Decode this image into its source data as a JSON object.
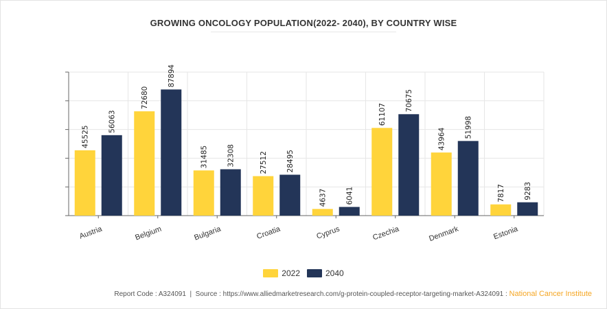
{
  "chart_data": {
    "type": "bar",
    "title": "GROWING ONCOLOGY POPULATION(2022- 2040), BY COUNTRY WISE",
    "categories": [
      "Austria",
      "Belgium",
      "Bulgaria",
      "Croatia",
      "Cyprus",
      "Czechia",
      "Denmark",
      "Estonia"
    ],
    "series": [
      {
        "name": "2022",
        "color": "#ffd43b",
        "values": [
          45525,
          72680,
          31485,
          27512,
          4637,
          61107,
          43964,
          7817
        ]
      },
      {
        "name": "2040",
        "color": "#233558",
        "values": [
          56063,
          87894,
          32308,
          28495,
          6041,
          70675,
          51998,
          9283
        ]
      }
    ],
    "xlabel": "",
    "ylabel": "",
    "ylim": [
      0,
      100000
    ],
    "grid": true,
    "legend": "bottom-center"
  },
  "footer": {
    "report_code": "Report Code : A324091",
    "separator": "|",
    "source": "Source : https://www.alliedmarketresearch.com/g-protein-coupled-receptor-targeting-market-A324091 :",
    "source_org": "National Cancer Institute"
  }
}
